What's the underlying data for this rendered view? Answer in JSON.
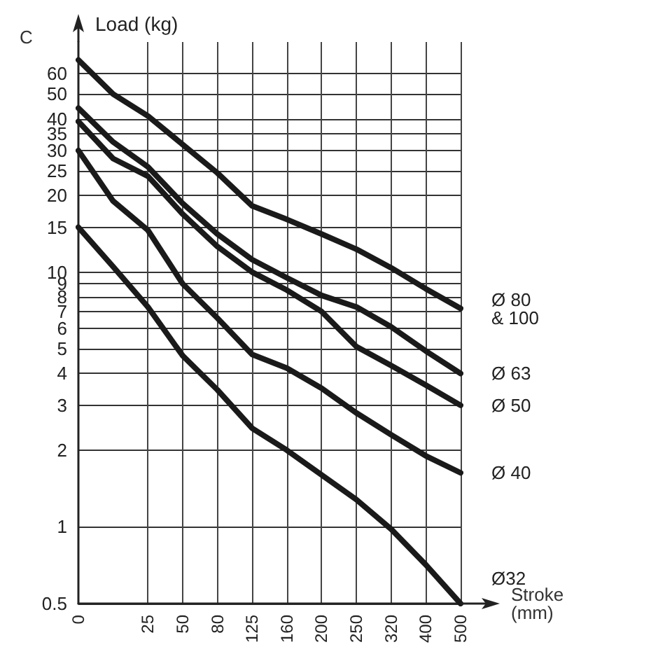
{
  "chart_data": {
    "type": "line",
    "ylabel": "Load (kg)",
    "xlabel": "Stroke\n(mm)",
    "annotations": [
      "C"
    ],
    "categories": [
      "0",
      null,
      "25",
      "50",
      "80",
      "125",
      "160",
      "200",
      "250",
      "320",
      "400",
      "500"
    ],
    "series": [
      {
        "name": "Ø 80\n& 100",
        "color": "#1a1a1a",
        "values": [
          68,
          50,
          41,
          31.7,
          24.5,
          18.2,
          16.1,
          14.1,
          12.3,
          10.4,
          8.6,
          7.2
        ]
      },
      {
        "name": "Ø 63",
        "color": "#1a1a1a",
        "values": [
          44,
          32.4,
          25.9,
          18.6,
          14.1,
          11.2,
          9.5,
          8.1,
          7.3,
          6.1,
          4.9,
          4
        ]
      },
      {
        "name": "Ø 50",
        "color": "#1a1a1a",
        "values": [
          39,
          27.9,
          23.8,
          16.9,
          12.6,
          10,
          8.5,
          7,
          5.1,
          4.3,
          3.6,
          3
        ]
      },
      {
        "name": "Ø 40",
        "color": "#1a1a1a",
        "values": [
          30,
          19,
          14.6,
          9,
          6.6,
          4.75,
          4.2,
          3.5,
          2.8,
          2.3,
          1.9,
          1.63
        ]
      },
      {
        "name": "Ø32",
        "color": "#1a1a1a",
        "values": [
          15,
          10.5,
          7.3,
          4.7,
          3.45,
          2.44,
          2,
          1.6,
          1.28,
          0.98,
          0.71,
          0.5
        ]
      }
    ],
    "log": "y",
    "ylim": [
      0.5,
      80
    ],
    "yticks": [
      0.5,
      1,
      2,
      3,
      4,
      5,
      6,
      7,
      8,
      9,
      10,
      15,
      20,
      25,
      30,
      35,
      40,
      50,
      60
    ],
    "grid": true,
    "legend": false,
    "marker": "none",
    "line_style": "solid"
  }
}
